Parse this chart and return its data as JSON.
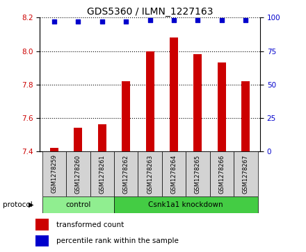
{
  "title": "GDS5360 / ILMN_1227163",
  "samples": [
    "GSM1278259",
    "GSM1278260",
    "GSM1278261",
    "GSM1278262",
    "GSM1278263",
    "GSM1278264",
    "GSM1278265",
    "GSM1278266",
    "GSM1278267"
  ],
  "bar_values": [
    7.42,
    7.54,
    7.56,
    7.82,
    8.0,
    8.08,
    7.98,
    7.93,
    7.82
  ],
  "percentile_values": [
    97,
    97,
    97,
    97,
    98,
    98,
    98,
    98,
    98
  ],
  "ylim_left": [
    7.4,
    8.2
  ],
  "ylim_right": [
    0,
    100
  ],
  "yticks_left": [
    7.4,
    7.6,
    7.8,
    8.0,
    8.2
  ],
  "yticks_right": [
    0,
    25,
    50,
    75,
    100
  ],
  "bar_color": "#cc0000",
  "dot_color": "#0000cc",
  "grid_color": "#000000",
  "ax_bg_color": "#ffffff",
  "sample_bg_color": "#d3d3d3",
  "protocol_control_color": "#90ee90",
  "protocol_knockdown_color": "#44cc44",
  "n_control": 3,
  "n_knockdown": 6,
  "control_label": "control",
  "knockdown_label": "Csnk1a1 knockdown",
  "protocol_label": "protocol",
  "legend_bar_label": "transformed count",
  "legend_dot_label": "percentile rank within the sample",
  "title_fontsize": 10,
  "tick_label_fontsize": 7.5,
  "sample_fontsize": 6,
  "protocol_fontsize": 7.5,
  "legend_fontsize": 7.5
}
